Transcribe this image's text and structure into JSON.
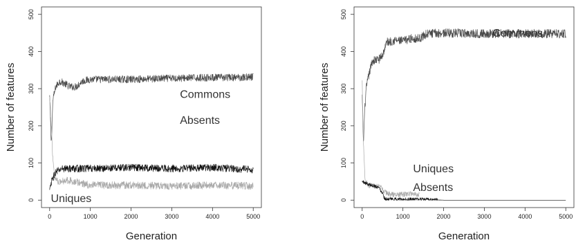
{
  "chart_data": [
    {
      "type": "line",
      "title": "",
      "xlabel": "Generation",
      "ylabel": "Number of features",
      "xlim": [
        0,
        5000
      ],
      "ylim": [
        0,
        500
      ],
      "xticks": [
        0,
        1000,
        2000,
        3000,
        4000,
        5000
      ],
      "yticks": [
        0,
        100,
        200,
        300,
        400,
        500
      ],
      "grid": false,
      "legend": "none",
      "annotations": [
        {
          "text": "Commons",
          "x": 3200,
          "y": 275
        },
        {
          "text": "Absents",
          "x": 3200,
          "y": 205
        },
        {
          "text": "Uniques",
          "x": 30,
          "y": -5
        }
      ],
      "series": [
        {
          "name": "Commons",
          "color": "#4a4a4a",
          "noise": 10,
          "points": [
            [
              0,
              280
            ],
            [
              40,
              150
            ],
            [
              80,
              270
            ],
            [
              150,
              305
            ],
            [
              250,
              320
            ],
            [
              350,
              315
            ],
            [
              500,
              305
            ],
            [
              650,
              305
            ],
            [
              800,
              320
            ],
            [
              1000,
              325
            ],
            [
              2000,
              325
            ],
            [
              3000,
              328
            ],
            [
              4000,
              330
            ],
            [
              4600,
              330
            ],
            [
              5000,
              332
            ]
          ]
        },
        {
          "name": "Absents",
          "color": "#111111",
          "noise": 10,
          "points": [
            [
              0,
              25
            ],
            [
              60,
              55
            ],
            [
              150,
              75
            ],
            [
              300,
              85
            ],
            [
              500,
              85
            ],
            [
              1000,
              85
            ],
            [
              2000,
              88
            ],
            [
              3000,
              85
            ],
            [
              4000,
              88
            ],
            [
              5000,
              82
            ]
          ]
        },
        {
          "name": "Uniques",
          "color": "#a9a9a9",
          "noise": 10,
          "points": [
            [
              0,
              275
            ],
            [
              40,
              200
            ],
            [
              80,
              110
            ],
            [
              130,
              60
            ],
            [
              250,
              48
            ],
            [
              400,
              55
            ],
            [
              600,
              50
            ],
            [
              1000,
              40
            ],
            [
              2000,
              40
            ],
            [
              3000,
              38
            ],
            [
              4000,
              40
            ],
            [
              5000,
              38
            ]
          ]
        }
      ]
    },
    {
      "type": "line",
      "title": "",
      "xlabel": "Generation",
      "ylabel": "Number of features",
      "xlim": [
        0,
        5000
      ],
      "ylim": [
        0,
        500
      ],
      "xticks": [
        0,
        1000,
        2000,
        3000,
        4000,
        5000
      ],
      "yticks": [
        0,
        100,
        200,
        300,
        400,
        500
      ],
      "grid": false,
      "legend": "none",
      "annotations": [
        {
          "text": "Commons",
          "x": 3200,
          "y": 440
        },
        {
          "text": "Uniques",
          "x": 1250,
          "y": 75
        },
        {
          "text": "Absents",
          "x": 1250,
          "y": 25
        }
      ],
      "series": [
        {
          "name": "Commons",
          "color": "#4a4a4a",
          "noise": 12,
          "points": [
            [
              0,
              280
            ],
            [
              30,
              150
            ],
            [
              60,
              240
            ],
            [
              100,
              300
            ],
            [
              150,
              330
            ],
            [
              250,
              375
            ],
            [
              400,
              378
            ],
            [
              500,
              390
            ],
            [
              600,
              425
            ],
            [
              800,
              430
            ],
            [
              1000,
              428
            ],
            [
              1200,
              435
            ],
            [
              1400,
              435
            ],
            [
              1600,
              448
            ],
            [
              2000,
              450
            ],
            [
              3000,
              448
            ],
            [
              4000,
              448
            ],
            [
              5000,
              448
            ]
          ]
        },
        {
          "name": "Uniques",
          "color": "#a9a9a9",
          "noise": 7,
          "points": [
            [
              0,
              320
            ],
            [
              30,
              160
            ],
            [
              70,
              55
            ],
            [
              150,
              40
            ],
            [
              300,
              38
            ],
            [
              450,
              35
            ],
            [
              550,
              22
            ],
            [
              700,
              15
            ],
            [
              1000,
              15
            ],
            [
              1200,
              18
            ],
            [
              1400,
              15
            ]
          ]
        },
        {
          "name": "Absents",
          "color": "#111111",
          "noise": 5,
          "points": [
            [
              0,
              50
            ],
            [
              100,
              45
            ],
            [
              250,
              40
            ],
            [
              400,
              35
            ],
            [
              500,
              20
            ],
            [
              550,
              5
            ],
            [
              600,
              2
            ],
            [
              1000,
              2
            ],
            [
              1400,
              2
            ],
            [
              2000,
              0
            ],
            [
              3000,
              0
            ],
            [
              4000,
              0
            ],
            [
              5000,
              0
            ]
          ]
        }
      ]
    }
  ]
}
